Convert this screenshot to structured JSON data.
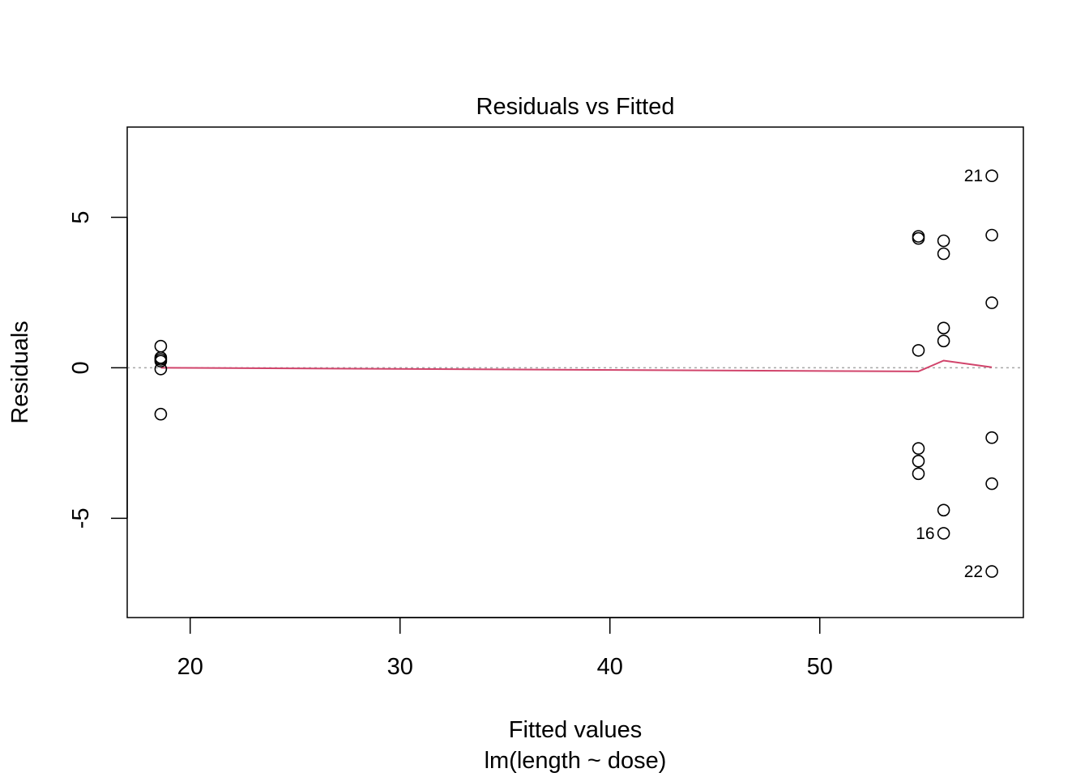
{
  "chart_data": {
    "type": "scatter",
    "title": "Residuals vs Fitted",
    "xlabel": "Fitted values",
    "xsublabel": "lm(length ~ dose)",
    "ylabel": "Residuals",
    "xlim": [
      17.0,
      59.7
    ],
    "ylim": [
      -8.3,
      8.0
    ],
    "xticks": [
      20,
      30,
      40,
      50
    ],
    "yticks": [
      -5,
      0,
      5
    ],
    "xtick_labels": [
      "20",
      "30",
      "40",
      "50"
    ],
    "ytick_labels": [
      "-5",
      "0",
      "5"
    ],
    "grid": false,
    "reference_line": {
      "y": 0,
      "style": "dotted",
      "color": "#a6a6a6"
    },
    "point_color": "#000000",
    "smooth_color": "#d1446b",
    "points": [
      {
        "x": 18.6,
        "y": 0.72
      },
      {
        "x": 18.6,
        "y": 0.34
      },
      {
        "x": 18.6,
        "y": 0.28
      },
      {
        "x": 18.6,
        "y": 0.22
      },
      {
        "x": 18.6,
        "y": -0.04
      },
      {
        "x": 18.6,
        "y": -1.54
      },
      {
        "x": 54.7,
        "y": 4.37
      },
      {
        "x": 54.7,
        "y": 4.3
      },
      {
        "x": 54.7,
        "y": 0.58
      },
      {
        "x": 54.7,
        "y": -2.68
      },
      {
        "x": 54.7,
        "y": -3.1
      },
      {
        "x": 54.7,
        "y": -3.52
      },
      {
        "x": 55.9,
        "y": 4.22
      },
      {
        "x": 55.9,
        "y": 3.79
      },
      {
        "x": 55.9,
        "y": 1.32
      },
      {
        "x": 55.9,
        "y": 0.89
      },
      {
        "x": 55.9,
        "y": -4.73
      },
      {
        "x": 55.9,
        "y": -5.5,
        "label": "16"
      },
      {
        "x": 58.2,
        "y": 6.38,
        "label": "21"
      },
      {
        "x": 58.2,
        "y": 4.41
      },
      {
        "x": 58.2,
        "y": 2.16
      },
      {
        "x": 58.2,
        "y": -2.32
      },
      {
        "x": 58.2,
        "y": -3.85
      },
      {
        "x": 58.2,
        "y": -6.77,
        "label": "22"
      }
    ],
    "smooth_line": [
      {
        "x": 18.6,
        "y": 0.0
      },
      {
        "x": 54.7,
        "y": -0.12
      },
      {
        "x": 55.9,
        "y": 0.24
      },
      {
        "x": 58.2,
        "y": 0.02
      }
    ]
  }
}
